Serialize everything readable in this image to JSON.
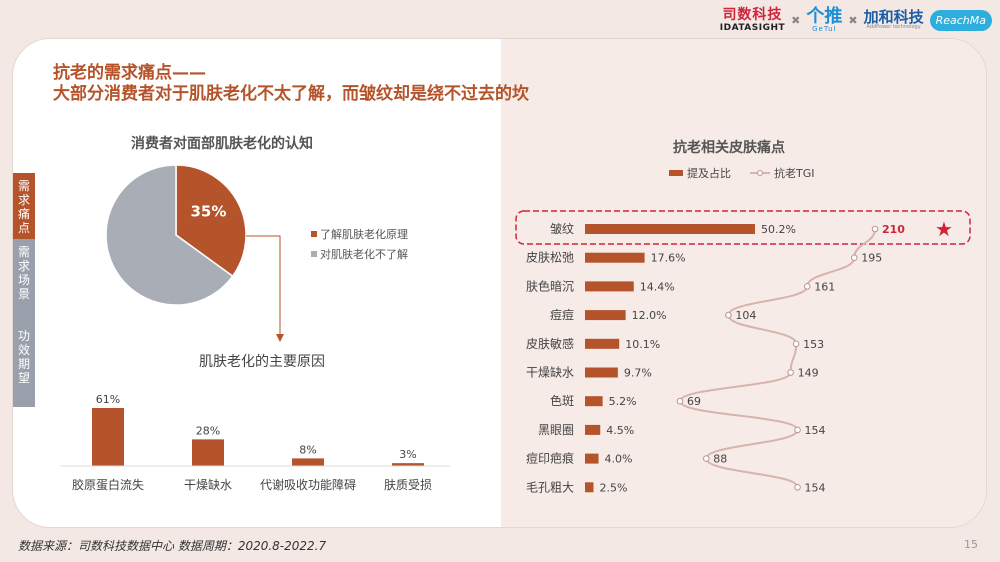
{
  "header": {
    "logo1_cn": "司数科技",
    "logo1_en": "IDATASIGHT",
    "logo2_cn": "个推",
    "logo2_en": "GeTuI",
    "logo3_cn": "加和科技",
    "logo3_en": "AddPower technology",
    "logo4": "ReachMa",
    "sep": "✖"
  },
  "title": {
    "line1": "抗老的需求痛点——",
    "line2": "大部分消费者对于肌肤老化不太了解，而皱纹却是绕不过去的坎"
  },
  "sidebar": {
    "items": [
      {
        "label": "需求痛点"
      },
      {
        "label": "需求场景"
      },
      {
        "label": "功效期望"
      }
    ]
  },
  "left": {
    "pie_title": "消费者对面部肌肤老化的认知",
    "bar_title": "肌肤老化的主要原因"
  },
  "right": {
    "title": "抗老相关皮肤痛点"
  },
  "footer": {
    "source": "数据来源：司数科技数据中心    数据周期：2020.8-2022.7",
    "page": "15"
  },
  "colors": {
    "accent": "#b5532a",
    "grey": "#a9adb6",
    "line": "#d8b3ad",
    "highlight": "#d0243b"
  },
  "chart_data": [
    {
      "type": "pie",
      "title": "消费者对面部肌肤老化的认知",
      "slices": [
        {
          "name": "了解肌肤老化原理",
          "value": 35,
          "label": "35%"
        },
        {
          "name": "对肌肤老化不了解",
          "value": 65,
          "label": ""
        }
      ]
    },
    {
      "type": "bar",
      "title": "肌肤老化的主要原因",
      "categories": [
        "胶原蛋白流失",
        "干燥缺水",
        "代谢吸收功能障碍",
        "肤质受损"
      ],
      "values": [
        61,
        28,
        8,
        3
      ],
      "labels": [
        "61%",
        "28%",
        "8%",
        "3%"
      ],
      "ylim": [
        0,
        61
      ]
    },
    {
      "type": "bar",
      "orientation": "horizontal",
      "title": "抗老相关皮肤痛点",
      "categories": [
        "皱纹",
        "皮肤松弛",
        "肤色暗沉",
        "痘痘",
        "皮肤敏感",
        "干燥缺水",
        "色斑",
        "黑眼圈",
        "痘印疤痕",
        "毛孔粗大"
      ],
      "series": [
        {
          "name": "提及占比",
          "values": [
            50.2,
            17.6,
            14.4,
            12.0,
            10.1,
            9.7,
            5.2,
            4.5,
            4.0,
            2.5
          ],
          "labels": [
            "50.2%",
            "17.6%",
            "14.4%",
            "12.0%",
            "10.1%",
            "9.7%",
            "5.2%",
            "4.5%",
            "4.0%",
            "2.5%"
          ]
        },
        {
          "name": "抗老TGI",
          "values": [
            210,
            195,
            161,
            104,
            153,
            149,
            69,
            154,
            88,
            154
          ],
          "labels": [
            "210",
            "195",
            "161",
            "104",
            "153",
            "149",
            "69",
            "154",
            "88",
            "154"
          ]
        }
      ],
      "highlight": "皱纹",
      "legend": "top"
    }
  ]
}
